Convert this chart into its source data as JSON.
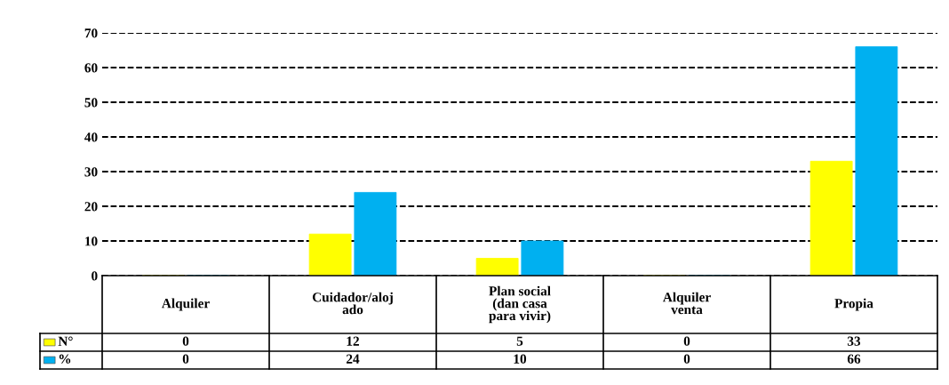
{
  "chart_data": {
    "type": "bar",
    "categories": [
      "Alquiler",
      "Cuidador/alojado",
      "Plan social (dan casa para vivir)",
      "Alquiler venta",
      "Propia"
    ],
    "series": [
      {
        "name": "N°",
        "color": "#ffff00",
        "values": [
          0,
          12,
          5,
          0,
          33
        ]
      },
      {
        "name": "%",
        "color": "#00b0f0",
        "values": [
          0,
          24,
          10,
          0,
          66
        ]
      }
    ],
    "ylim": [
      0,
      70
    ],
    "yticks": [
      0,
      10,
      20,
      30,
      40,
      50,
      60,
      70
    ],
    "grid": "y",
    "line_style": "dashed",
    "data_labels": true,
    "legend": "bottom"
  }
}
